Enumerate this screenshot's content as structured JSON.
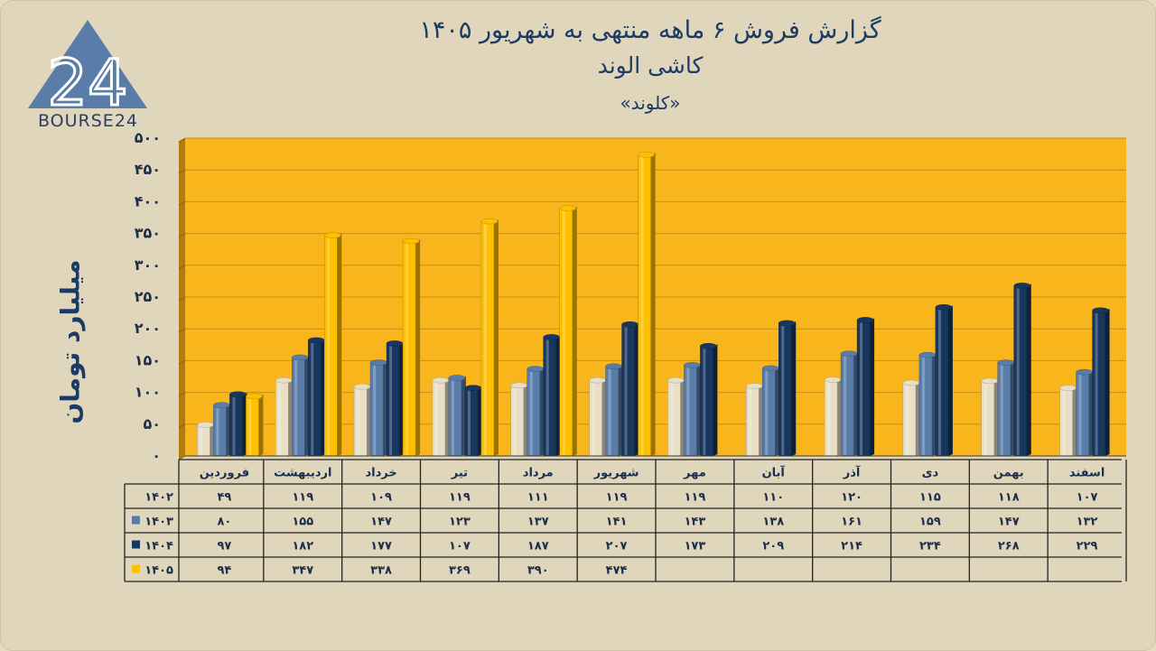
{
  "brand": {
    "logo_text": "BOURSE24",
    "logo_mark": "24"
  },
  "title": {
    "line1": "گزارش  فروش ۶ ماهه منتهی به شهریور ۱۴۰۵",
    "line2": "کاشی الوند",
    "line3": "«کلوند»"
  },
  "colors": {
    "plot_bg": "#f8b51c",
    "s1402": "#e8dfc6",
    "s1403": "#5a7ca8",
    "s1404": "#17375e",
    "s1405": "#ffc000"
  },
  "chart_data": {
    "type": "bar",
    "ylabel": "میلیارد تومان",
    "ylim": [
      0,
      500
    ],
    "y_ticks": [
      0,
      50,
      100,
      150,
      200,
      250,
      300,
      350,
      400,
      450,
      500
    ],
    "y_tick_labels": [
      "۰",
      "۵۰",
      "۱۰۰",
      "۱۵۰",
      "۲۰۰",
      "۲۵۰",
      "۳۰۰",
      "۳۵۰",
      "۴۰۰",
      "۴۵۰",
      "۵۰۰"
    ],
    "grid": true,
    "legend": "data-table",
    "categories": [
      "فروردین",
      "اردیبهشت",
      "خرداد",
      "تیر",
      "مرداد",
      "شهریور",
      "مهر",
      "آبان",
      "آذر",
      "دی",
      "بهمن",
      "اسفند"
    ],
    "series": [
      {
        "name": "۱۴۰۲",
        "values": [
          49,
          119,
          109,
          119,
          111,
          119,
          119,
          110,
          120,
          115,
          118,
          107
        ],
        "labels": [
          "۴۹",
          "۱۱۹",
          "۱۰۹",
          "۱۱۹",
          "۱۱۱",
          "۱۱۹",
          "۱۱۹",
          "۱۱۰",
          "۱۲۰",
          "۱۱۵",
          "۱۱۸",
          "۱۰۷"
        ]
      },
      {
        "name": "۱۴۰۳",
        "values": [
          80,
          155,
          147,
          123,
          137,
          141,
          143,
          138,
          161,
          159,
          147,
          132
        ],
        "labels": [
          "۸۰",
          "۱۵۵",
          "۱۴۷",
          "۱۲۳",
          "۱۳۷",
          "۱۴۱",
          "۱۴۳",
          "۱۳۸",
          "۱۶۱",
          "۱۵۹",
          "۱۴۷",
          "۱۳۲"
        ]
      },
      {
        "name": "۱۴۰۴",
        "values": [
          97,
          182,
          177,
          107,
          187,
          207,
          173,
          209,
          214,
          234,
          268,
          229
        ],
        "labels": [
          "۹۷",
          "۱۸۲",
          "۱۷۷",
          "۱۰۷",
          "۱۸۷",
          "۲۰۷",
          "۱۷۳",
          "۲۰۹",
          "۲۱۴",
          "۲۳۴",
          "۲۶۸",
          "۲۲۹"
        ]
      },
      {
        "name": "۱۴۰۵",
        "values": [
          94,
          347,
          338,
          369,
          390,
          474,
          null,
          null,
          null,
          null,
          null,
          null
        ],
        "labels": [
          "۹۴",
          "۳۴۷",
          "۳۳۸",
          "۳۶۹",
          "۳۹۰",
          "۴۷۴",
          "",
          "",
          "",
          "",
          "",
          ""
        ]
      }
    ]
  }
}
